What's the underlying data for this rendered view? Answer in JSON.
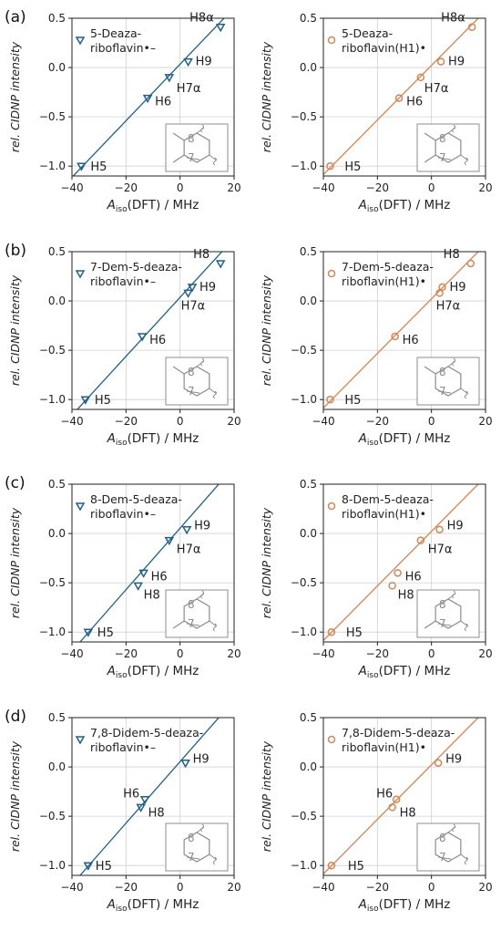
{
  "colors": {
    "radical": "#1f5f8b",
    "neutral": "#d98353",
    "inset": "#8c8c8c"
  },
  "axis_labels": {
    "x_prefix": "A",
    "x_sub": "iso",
    "x_suffix": "(DFT) / MHz",
    "y": "rel. CIDNP intensity"
  },
  "chart_data": [
    {
      "type": "scatter",
      "panel": "(a)",
      "molecule": "5-Deaza-riboflavin",
      "marker": "triangle-down",
      "color": "radical",
      "legend": [
        "5-Deaza-",
        "riboflavin•–"
      ],
      "xlim": [
        -40,
        20
      ],
      "ylim": [
        -1.1,
        0.5
      ],
      "xticks": [
        "−40",
        "−20",
        "0",
        "20"
      ],
      "yticks": [
        "0.5",
        "0.0",
        "−0.5",
        "−1.0"
      ],
      "fit_line": [
        [
          -40,
          -1.113
        ],
        [
          20,
          0.607
        ]
      ],
      "points": [
        {
          "label": "H5",
          "x": -36.5,
          "y": -1.0
        },
        {
          "label": "H6",
          "x": -12.0,
          "y": -0.31
        },
        {
          "label": "H7α",
          "x": -4.0,
          "y": -0.1
        },
        {
          "label": "H9",
          "x": 3.0,
          "y": 0.06
        },
        {
          "label": "H8α",
          "x": 15.0,
          "y": 0.41
        }
      ],
      "inset": {
        "labels": [
          "8",
          "7"
        ],
        "methyl8": true,
        "methyl7": true
      }
    },
    {
      "type": "scatter",
      "panel": "",
      "molecule": "5-Deaza-riboflavin",
      "marker": "circle",
      "color": "neutral",
      "legend": [
        "5-Deaza-",
        "riboflavin(H1)•"
      ],
      "xlim": [
        -40,
        20
      ],
      "ylim": [
        -1.1,
        0.5
      ],
      "xticks": [
        "−40",
        "−20",
        "0",
        "20"
      ],
      "yticks": [
        "0.5",
        "0.0",
        "−0.5",
        "−1.0"
      ],
      "fit_line": [
        [
          -40,
          -1.085
        ],
        [
          20,
          0.575
        ]
      ],
      "points": [
        {
          "label": "H5",
          "x": -37.5,
          "y": -1.0
        },
        {
          "label": "H6",
          "x": -12.0,
          "y": -0.31
        },
        {
          "label": "H7α",
          "x": -4.0,
          "y": -0.1
        },
        {
          "label": "H9",
          "x": 3.5,
          "y": 0.06
        },
        {
          "label": "H8α",
          "x": 15.0,
          "y": 0.41
        }
      ],
      "inset": {
        "labels": [
          "8",
          "7"
        ],
        "methyl8": true,
        "methyl7": true
      }
    },
    {
      "type": "scatter",
      "panel": "(b)",
      "molecule": "7-Dem-5-deaza-riboflavin",
      "marker": "triangle-down",
      "color": "radical",
      "legend": [
        "7-Dem-5-deaza-",
        "riboflavin•–"
      ],
      "xlim": [
        -40,
        20
      ],
      "ylim": [
        -1.1,
        0.5
      ],
      "xticks": [
        "−40",
        "−20",
        "0",
        "20"
      ],
      "yticks": [
        "0.5",
        "0.0",
        "−0.5",
        "−1.0"
      ],
      "fit_line": [
        [
          -38,
          -1.1
        ],
        [
          20,
          0.635
        ]
      ],
      "points": [
        {
          "label": "H5",
          "x": -35.0,
          "y": -1.0
        },
        {
          "label": "H6",
          "x": -14.0,
          "y": -0.36
        },
        {
          "label": "H7α",
          "x": 3.0,
          "y": 0.08
        },
        {
          "label": "H9",
          "x": 4.5,
          "y": 0.14
        },
        {
          "label": "H8",
          "x": 15.0,
          "y": 0.38
        }
      ],
      "inset": {
        "labels": [
          "8",
          "7"
        ],
        "methyl8": true,
        "methyl7": false
      }
    },
    {
      "type": "scatter",
      "panel": "",
      "molecule": "7-Dem-5-deaza-riboflavin",
      "marker": "circle",
      "color": "neutral",
      "legend": [
        "7-Dem-5-deaza-",
        "riboflavin(H1)•"
      ],
      "xlim": [
        -40,
        20
      ],
      "ylim": [
        -1.1,
        0.5
      ],
      "xticks": [
        "−40",
        "−20",
        "0",
        "20"
      ],
      "yticks": [
        "0.5",
        "0.0",
        "−0.5",
        "−1.0"
      ],
      "fit_line": [
        [
          -40,
          -1.085
        ],
        [
          20,
          0.575
        ]
      ],
      "points": [
        {
          "label": "H5",
          "x": -37.5,
          "y": -1.0
        },
        {
          "label": "H6",
          "x": -13.5,
          "y": -0.36
        },
        {
          "label": "H7α",
          "x": 3.0,
          "y": 0.08
        },
        {
          "label": "H9",
          "x": 4.0,
          "y": 0.14
        },
        {
          "label": "H8",
          "x": 14.5,
          "y": 0.38
        }
      ],
      "inset": {
        "labels": [
          "8",
          "7"
        ],
        "methyl8": true,
        "methyl7": false
      }
    },
    {
      "type": "scatter",
      "panel": "(c)",
      "molecule": "8-Dem-5-deaza-riboflavin",
      "marker": "triangle-down",
      "color": "radical",
      "legend": [
        "8-Dem-5-deaza-",
        "riboflavin•–"
      ],
      "xlim": [
        -40,
        20
      ],
      "ylim": [
        -1.1,
        0.5
      ],
      "xticks": [
        "−40",
        "−20",
        "0",
        "20"
      ],
      "yticks": [
        "0.5",
        "0.0",
        "−0.5",
        "−1.0"
      ],
      "fit_line": [
        [
          -37,
          -1.1
        ],
        [
          20,
          0.677
        ]
      ],
      "points": [
        {
          "label": "H5",
          "x": -34.0,
          "y": -1.0
        },
        {
          "label": "H8",
          "x": -15.5,
          "y": -0.53
        },
        {
          "label": "H6",
          "x": -13.5,
          "y": -0.4
        },
        {
          "label": "H7α",
          "x": -4.0,
          "y": -0.07
        },
        {
          "label": "H9",
          "x": 2.5,
          "y": 0.04
        }
      ],
      "inset": {
        "labels": [
          "8",
          "7"
        ],
        "methyl8": false,
        "methyl7": true
      }
    },
    {
      "type": "scatter",
      "panel": "",
      "molecule": "8-Dem-5-deaza-riboflavin",
      "marker": "circle",
      "color": "neutral",
      "legend": [
        "8-Dem-5-deaza-",
        "riboflavin(H1)•"
      ],
      "xlim": [
        -40,
        20
      ],
      "ylim": [
        -1.1,
        0.5
      ],
      "xticks": [
        "−40",
        "−20",
        "0",
        "20"
      ],
      "yticks": [
        "0.5",
        "0.0",
        "−0.5",
        "−1.0"
      ],
      "fit_line": [
        [
          -40,
          -1.085
        ],
        [
          20,
          0.575
        ]
      ],
      "points": [
        {
          "label": "H5",
          "x": -37.0,
          "y": -1.0
        },
        {
          "label": "H8",
          "x": -14.5,
          "y": -0.53
        },
        {
          "label": "H6",
          "x": -12.5,
          "y": -0.4
        },
        {
          "label": "H7α",
          "x": -4.0,
          "y": -0.07
        },
        {
          "label": "H9",
          "x": 3.0,
          "y": 0.04
        }
      ],
      "inset": {
        "labels": [
          "8",
          "7"
        ],
        "methyl8": false,
        "methyl7": true
      }
    },
    {
      "type": "scatter",
      "panel": "(d)",
      "molecule": "7,8-Didem-5-deaza-riboflavin",
      "marker": "triangle-down",
      "color": "radical",
      "legend": [
        "7,8-Didem-5-deaza-",
        "riboflavin•–"
      ],
      "xlim": [
        -40,
        20
      ],
      "ylim": [
        -1.1,
        0.5
      ],
      "xticks": [
        "−40",
        "−20",
        "0",
        "20"
      ],
      "yticks": [
        "0.5",
        "0.0",
        "−0.5",
        "−1.0"
      ],
      "fit_line": [
        [
          -37,
          -1.1
        ],
        [
          20,
          0.677
        ]
      ],
      "points": [
        {
          "label": "H5",
          "x": -34.0,
          "y": -1.0
        },
        {
          "label": "H8",
          "x": -14.5,
          "y": -0.41
        },
        {
          "label": "H6",
          "x": -13.0,
          "y": -0.33
        },
        {
          "label": "H9",
          "x": 2.0,
          "y": 0.04
        }
      ],
      "inset": {
        "labels": [
          "8",
          "7"
        ],
        "methyl8": false,
        "methyl7": false
      }
    },
    {
      "type": "scatter",
      "panel": "",
      "molecule": "7,8-Didem-5-deaza-riboflavin",
      "marker": "circle",
      "color": "neutral",
      "legend": [
        "7,8-Didem-5-deaza-",
        "riboflavin(H1)•"
      ],
      "xlim": [
        -40,
        20
      ],
      "ylim": [
        -1.1,
        0.5
      ],
      "xticks": [
        "−40",
        "−20",
        "0",
        "20"
      ],
      "yticks": [
        "0.5",
        "0.0",
        "−0.5",
        "−1.0"
      ],
      "fit_line": [
        [
          -40,
          -1.085
        ],
        [
          20,
          0.575
        ]
      ],
      "points": [
        {
          "label": "H5",
          "x": -37.0,
          "y": -1.0
        },
        {
          "label": "H8",
          "x": -14.5,
          "y": -0.41
        },
        {
          "label": "H6",
          "x": -13.0,
          "y": -0.33
        },
        {
          "label": "H9",
          "x": 2.5,
          "y": 0.04
        }
      ],
      "inset": {
        "labels": [
          "8",
          "7"
        ],
        "methyl8": false,
        "methyl7": false
      }
    }
  ]
}
